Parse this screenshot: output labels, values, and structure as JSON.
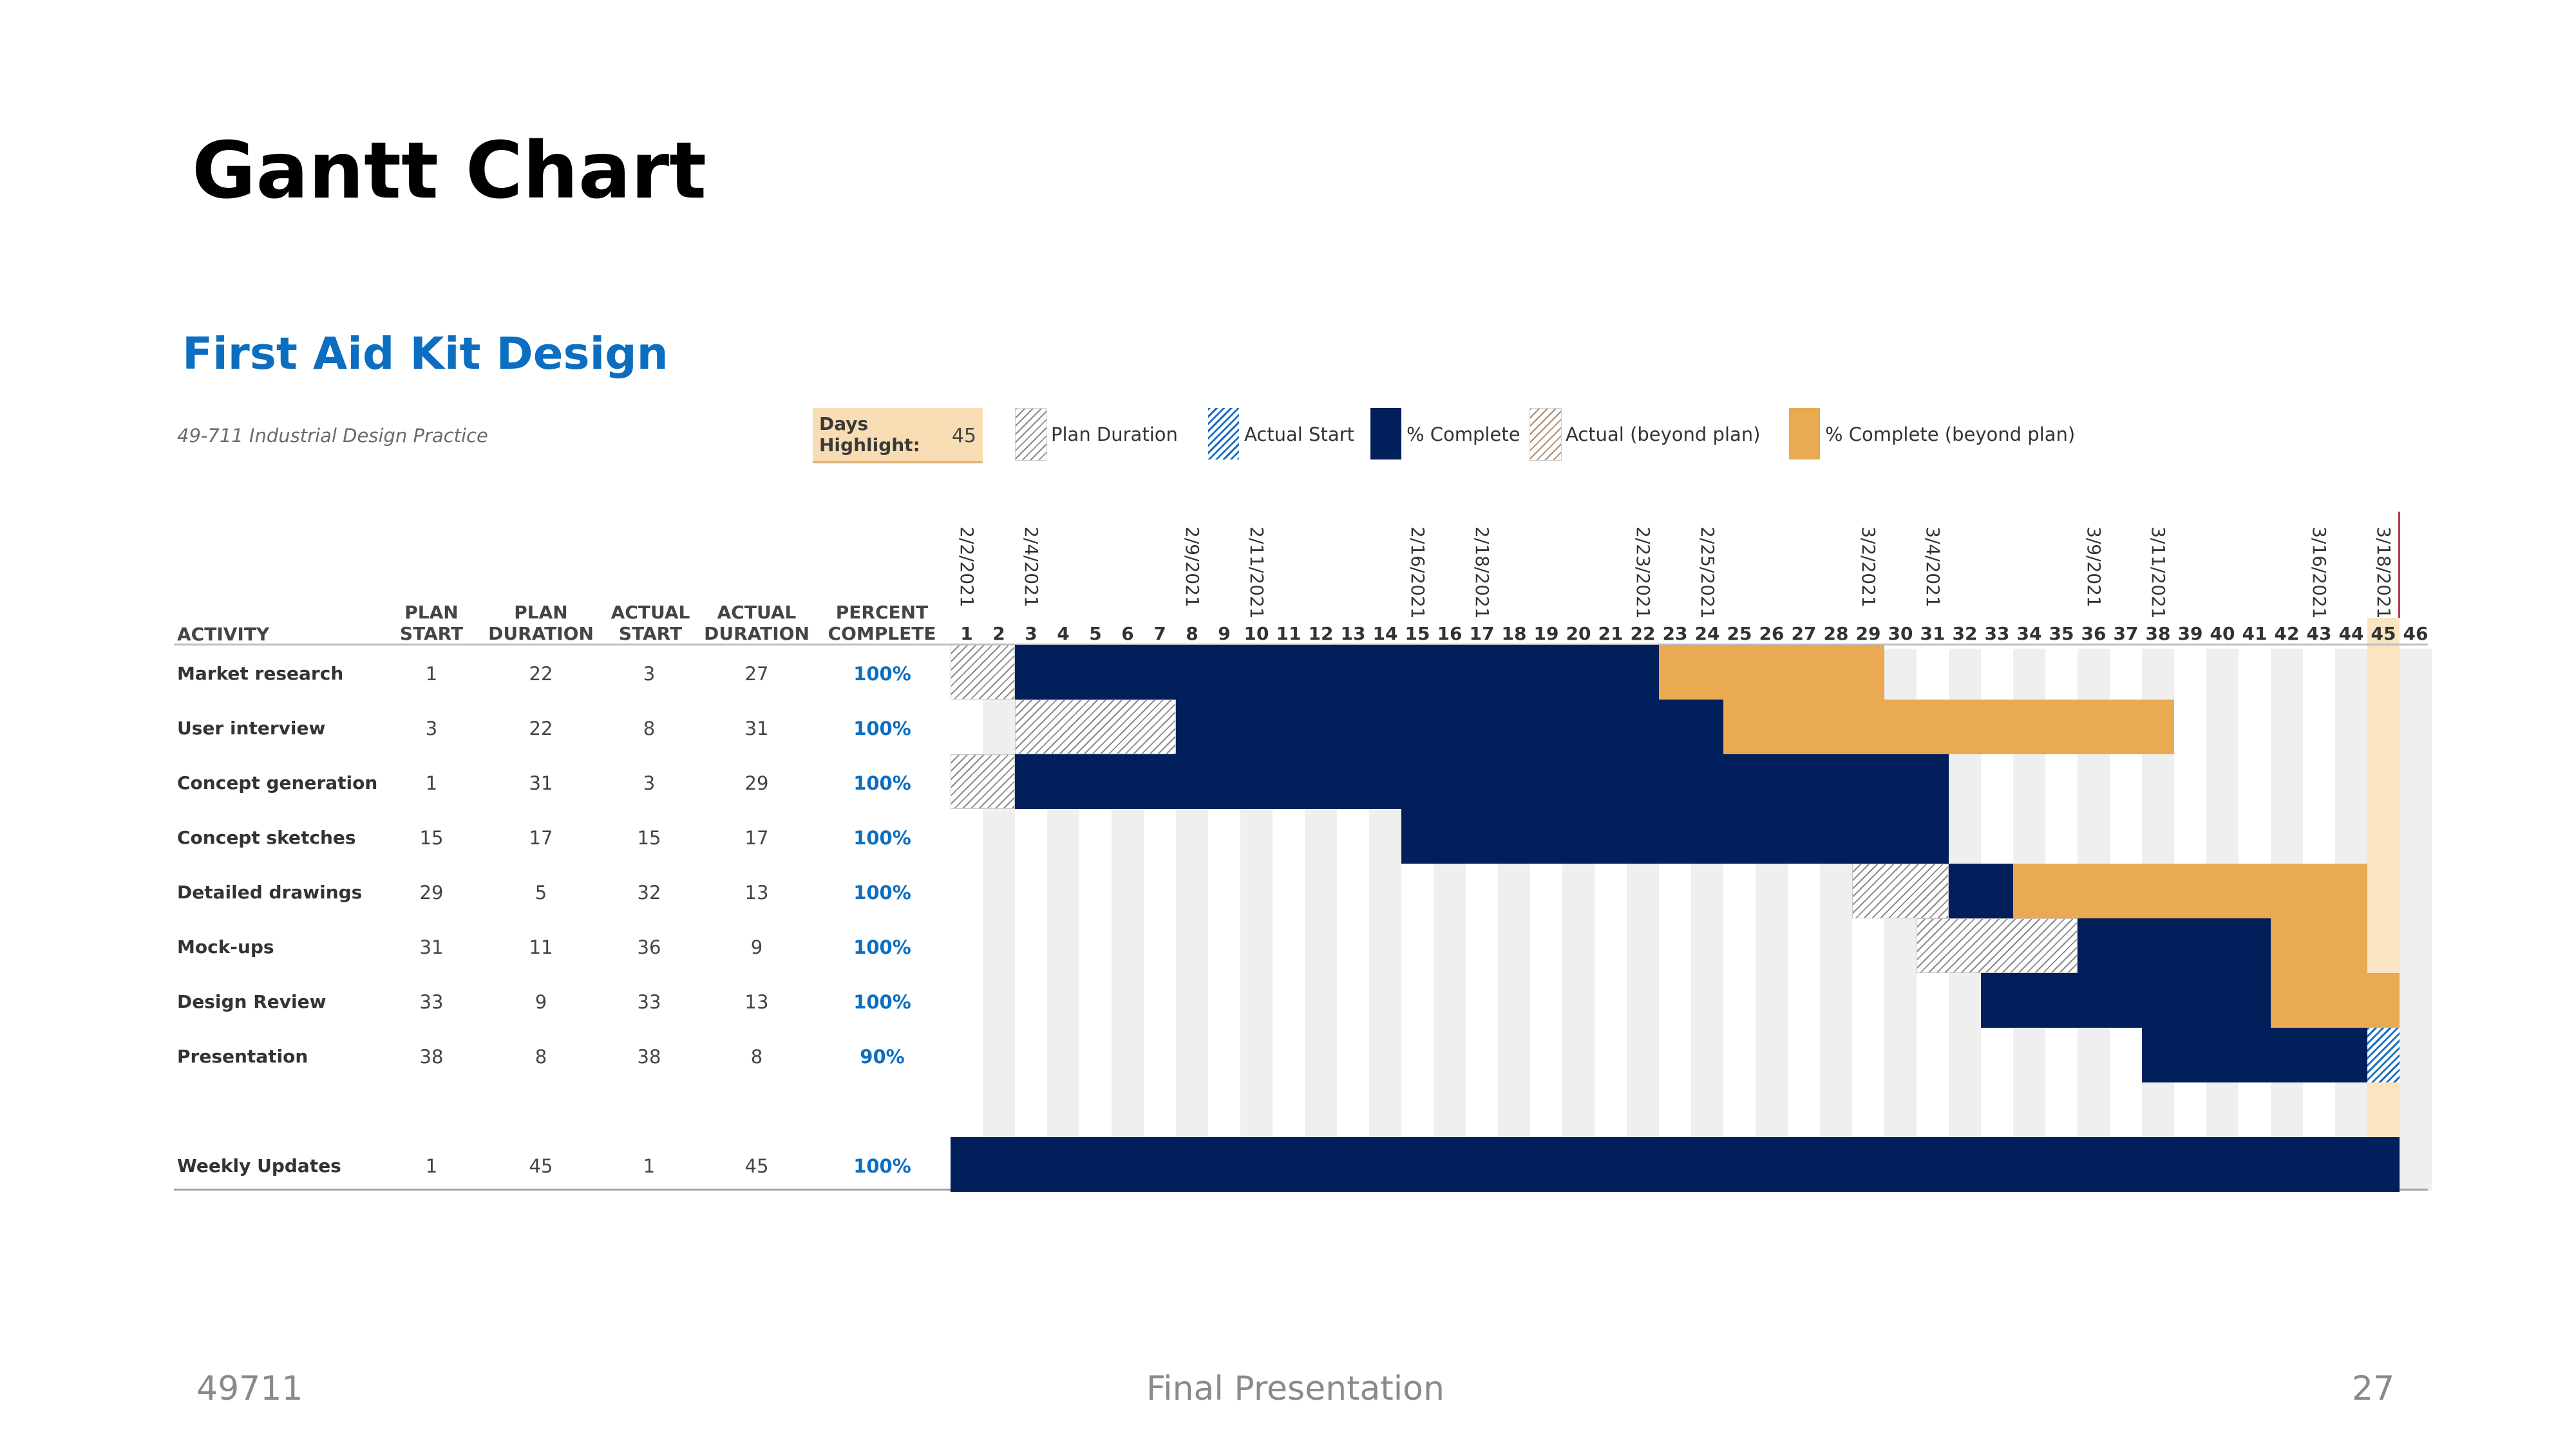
{
  "slide": {
    "title": "Gantt Chart",
    "footer_left": "49711",
    "footer_center": "Final Presentation",
    "footer_right": "27"
  },
  "project": {
    "title": "First Aid Kit Design",
    "course": "49-711 Industrial Design Practice"
  },
  "highlight": {
    "label": "Days Highlight:",
    "value": "45"
  },
  "legend": [
    {
      "label": "Plan Duration",
      "style": "hatch-grey"
    },
    {
      "label": "Actual Start",
      "style": "hatch-blue"
    },
    {
      "label": "% Complete",
      "style": "solid-navy"
    },
    {
      "label": "Actual (beyond plan)",
      "style": "hatch-tan"
    },
    {
      "label": "% Complete (beyond plan)",
      "style": "solid-orange"
    }
  ],
  "colors": {
    "navy": "#001F5B",
    "orange": "#E9AA52",
    "blue_title": "#0B6EC0",
    "actual_start_blue": "#1B6FC4",
    "highlight": "#F8DDB4"
  },
  "headers": {
    "activity": "ACTIVITY",
    "plan_start": [
      "PLAN",
      "START"
    ],
    "plan_duration": [
      "PLAN",
      "DURATION"
    ],
    "actual_start": [
      "ACTUAL",
      "START"
    ],
    "actual_duration": [
      "ACTUAL",
      "DURATION"
    ],
    "percent_complete": [
      "PERCENT",
      "COMPLETE"
    ]
  },
  "chart_data": {
    "type": "gantt",
    "title": "First Aid Kit Design",
    "days": [
      1,
      2,
      3,
      4,
      5,
      6,
      7,
      8,
      9,
      10,
      11,
      12,
      13,
      14,
      15,
      16,
      17,
      18,
      19,
      20,
      21,
      22,
      23,
      24,
      25,
      26,
      27,
      28,
      29,
      30,
      31,
      32,
      33,
      34,
      35,
      36,
      37,
      38,
      39,
      40,
      41,
      42,
      43,
      44,
      45,
      46
    ],
    "date_labels": [
      {
        "day": 1,
        "label": "2/2/2021"
      },
      {
        "day": 3,
        "label": "2/4/2021"
      },
      {
        "day": 8,
        "label": "2/9/2021"
      },
      {
        "day": 10,
        "label": "2/11/2021"
      },
      {
        "day": 15,
        "label": "2/16/2021"
      },
      {
        "day": 17,
        "label": "2/18/2021"
      },
      {
        "day": 22,
        "label": "2/23/2021"
      },
      {
        "day": 24,
        "label": "2/25/2021"
      },
      {
        "day": 29,
        "label": "3/2/2021"
      },
      {
        "day": 31,
        "label": "3/4/2021"
      },
      {
        "day": 36,
        "label": "3/9/2021"
      },
      {
        "day": 38,
        "label": "3/11/2021"
      },
      {
        "day": 43,
        "label": "3/16/2021"
      },
      {
        "day": 45,
        "label": "3/18/2021"
      }
    ],
    "highlight_day": 45,
    "activities": [
      {
        "name": "Market research",
        "plan_start": 1,
        "plan_duration": 22,
        "actual_start": 3,
        "actual_duration": 27,
        "percent": "100%",
        "percent_value": 100
      },
      {
        "name": "User interview",
        "plan_start": 3,
        "plan_duration": 22,
        "actual_start": 8,
        "actual_duration": 31,
        "percent": "100%",
        "percent_value": 100
      },
      {
        "name": "Concept generation",
        "plan_start": 1,
        "plan_duration": 31,
        "actual_start": 3,
        "actual_duration": 29,
        "percent": "100%",
        "percent_value": 100
      },
      {
        "name": "Concept sketches",
        "plan_start": 15,
        "plan_duration": 17,
        "actual_start": 15,
        "actual_duration": 17,
        "percent": "100%",
        "percent_value": 100
      },
      {
        "name": "Detailed drawings",
        "plan_start": 29,
        "plan_duration": 5,
        "actual_start": 32,
        "actual_duration": 13,
        "percent": "100%",
        "percent_value": 100
      },
      {
        "name": "Mock-ups",
        "plan_start": 31,
        "plan_duration": 11,
        "actual_start": 36,
        "actual_duration": 9,
        "percent": "100%",
        "percent_value": 100
      },
      {
        "name": "Design Review",
        "plan_start": 33,
        "plan_duration": 9,
        "actual_start": 33,
        "actual_duration": 13,
        "percent": "100%",
        "percent_value": 100
      },
      {
        "name": "Presentation",
        "plan_start": 38,
        "plan_duration": 8,
        "actual_start": 38,
        "actual_duration": 8,
        "percent": "90%",
        "percent_value": 90
      },
      {
        "name": "",
        "plan_start": "",
        "plan_duration": "",
        "actual_start": "",
        "actual_duration": "",
        "percent": "",
        "percent_value": null
      },
      {
        "name": "Weekly Updates",
        "plan_start": 1,
        "plan_duration": 45,
        "actual_start": 1,
        "actual_duration": 45,
        "percent": "100%",
        "percent_value": 100
      }
    ]
  }
}
